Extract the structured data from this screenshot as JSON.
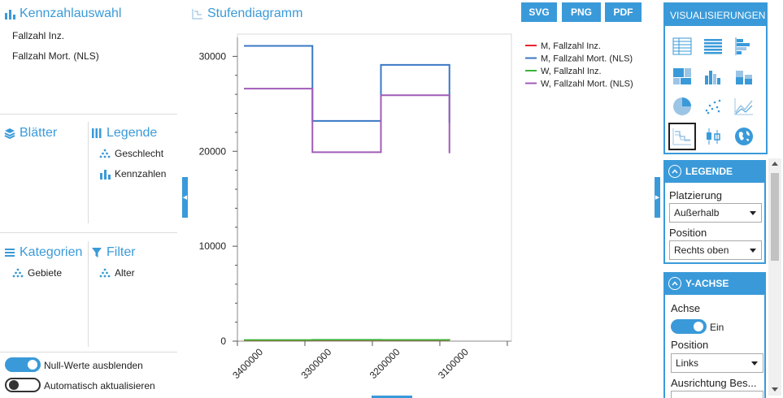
{
  "left": {
    "kennzahl_title": "Kennzahlauswahl",
    "kennzahl_items": [
      "Fallzahl Inz.",
      "Fallzahl Mort. (NLS)"
    ],
    "blaetter_title": "Blätter",
    "legende_title": "Legende",
    "legende_items": [
      {
        "label": "Geschlecht",
        "icon": "hierarchy-icon"
      },
      {
        "label": "Kennzahlen",
        "icon": "bar-chart-icon"
      }
    ],
    "kategorien_title": "Kategorien",
    "kategorien_items": [
      {
        "label": "Gebiete",
        "icon": "hierarchy-icon"
      }
    ],
    "filter_title": "Filter",
    "filter_items": [
      {
        "label": "Alter",
        "icon": "hierarchy-icon"
      }
    ],
    "toggles": [
      {
        "label": "Null-Werte ausblenden",
        "on": true
      },
      {
        "label": "Automatisch aktualisieren",
        "on": false
      }
    ]
  },
  "chart": {
    "title": "Stufendiagramm",
    "export_buttons": [
      "SVG",
      "PNG",
      "PDF"
    ]
  },
  "chart_data": {
    "type": "line",
    "title": "Stufendiagramm",
    "x": [
      "3400000",
      "3300000",
      "3200000",
      "3100000"
    ],
    "ylim": [
      0,
      32000
    ],
    "y_ticks": [
      0,
      10000,
      20000,
      30000
    ],
    "grid": false,
    "legend_position": "top-right",
    "series": [
      {
        "name": "M, Fallzahl Inz.",
        "color": "#e8252b",
        "values": [
          90,
          110,
          100,
          95
        ]
      },
      {
        "name": "M, Fallzahl Mort. (NLS)",
        "color": "#3a78c3",
        "values": [
          31100,
          23200,
          29100,
          23000
        ]
      },
      {
        "name": "W, Fallzahl Inz.",
        "color": "#3cb43c",
        "values": [
          120,
          140,
          130,
          120
        ]
      },
      {
        "name": "W, Fallzahl Mort. (NLS)",
        "color": "#a05cb8",
        "values": [
          26600,
          19900,
          25900,
          19800
        ]
      }
    ]
  },
  "right": {
    "vis_title": "VISUALISIERUNGEN",
    "vis_icons": [
      "table-icon",
      "list-table-icon",
      "horizontal-bar-icon",
      "treemap-icon",
      "column-chart-icon",
      "stacked-column-icon",
      "pie-chart-icon",
      "scatter-icon",
      "line-chart-icon",
      "step-chart-icon",
      "boxplot-icon",
      "globe-icon"
    ],
    "vis_selected": "step-chart-icon",
    "legende": {
      "title": "LEGENDE",
      "platzierung_label": "Platzierung",
      "platzierung_value": "Außerhalb",
      "position_label": "Position",
      "position_value": "Rechts oben"
    },
    "yachse": {
      "title": "Y-ACHSE",
      "achse_label": "Achse",
      "achse_toggle_label": "Ein",
      "position_label": "Position",
      "position_value": "Links",
      "ausrichtung_label": "Ausrichtung Bes..."
    }
  }
}
